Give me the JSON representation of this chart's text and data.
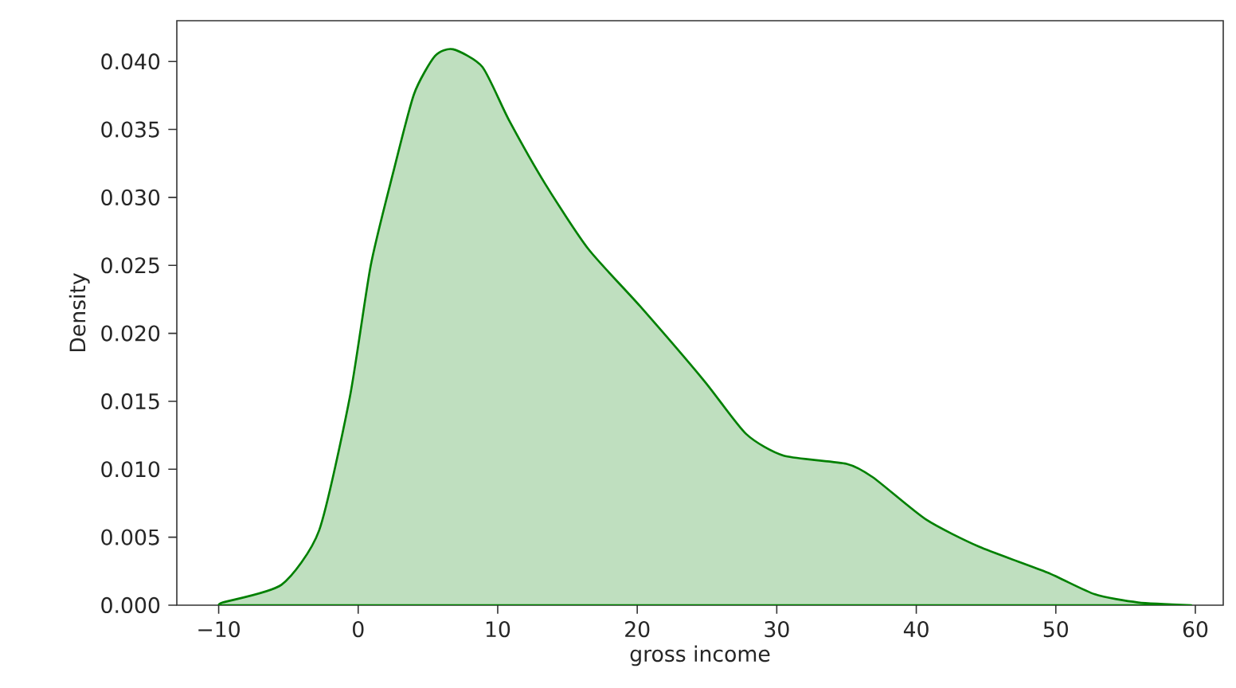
{
  "chart_data": {
    "type": "area",
    "xlabel": "gross income",
    "ylabel": "Density",
    "color": "#008000",
    "x": [
      -9.9,
      -9.7,
      -5.5,
      -2.8,
      -0.6,
      0.9,
      2.5,
      4,
      5.5,
      6.8,
      8.9,
      10.8,
      13.4,
      16.5,
      20.2,
      24.8,
      27.8,
      30.5,
      35,
      36.9,
      40.7,
      44.5,
      49.4,
      52.8,
      55.9,
      59.7
    ],
    "values": [
      0,
      0.0002,
      0.0015,
      0.0055,
      0.0153,
      0.025,
      0.0318,
      0.0376,
      0.0404,
      0.0409,
      0.0396,
      0.0357,
      0.031,
      0.0262,
      0.022,
      0.0165,
      0.0126,
      0.011,
      0.0104,
      0.0094,
      0.0063,
      0.0043,
      0.0024,
      0.0008,
      0.0002,
      0
    ],
    "xlim": [
      -13,
      62
    ],
    "ylim": [
      0,
      0.043
    ],
    "xticks": [
      {
        "value": -10,
        "label": "−10"
      },
      0,
      10,
      20,
      30,
      40,
      50,
      60
    ],
    "yticks": [
      {
        "value": 0,
        "label": "0.000"
      },
      {
        "value": 0.005,
        "label": "0.005"
      },
      {
        "value": 0.01,
        "label": "0.010"
      },
      {
        "value": 0.015,
        "label": "0.015"
      },
      {
        "value": 0.02,
        "label": "0.020"
      },
      {
        "value": 0.025,
        "label": "0.025"
      },
      {
        "value": 0.03,
        "label": "0.030"
      },
      {
        "value": 0.035,
        "label": "0.035"
      },
      {
        "value": 0.04,
        "label": "0.040"
      }
    ],
    "grid": false
  }
}
